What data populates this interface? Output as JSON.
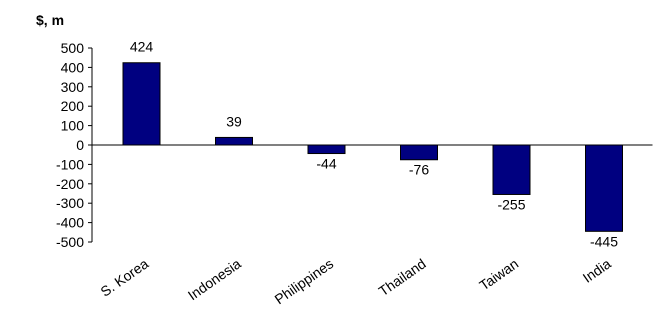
{
  "chart_data": {
    "type": "bar",
    "title": "",
    "ylabel": "$, m",
    "xlabel": "",
    "categories": [
      "S. Korea",
      "Indonesia",
      "Philippines",
      "Thailand",
      "Taiwan",
      "India"
    ],
    "values": [
      424,
      39,
      -44,
      -76,
      -255,
      -445
    ],
    "data_labels": [
      "424",
      "39",
      "-44",
      "-76",
      "-255",
      "-445"
    ],
    "ylim": [
      -500,
      500
    ],
    "yticks": [
      "500",
      "400",
      "300",
      "200",
      "100",
      "0",
      "-100",
      "-200",
      "-300",
      "-400",
      "-500"
    ],
    "grid": false,
    "legend": "none",
    "bar_color": "#000080",
    "bar_edge": "#000000"
  }
}
